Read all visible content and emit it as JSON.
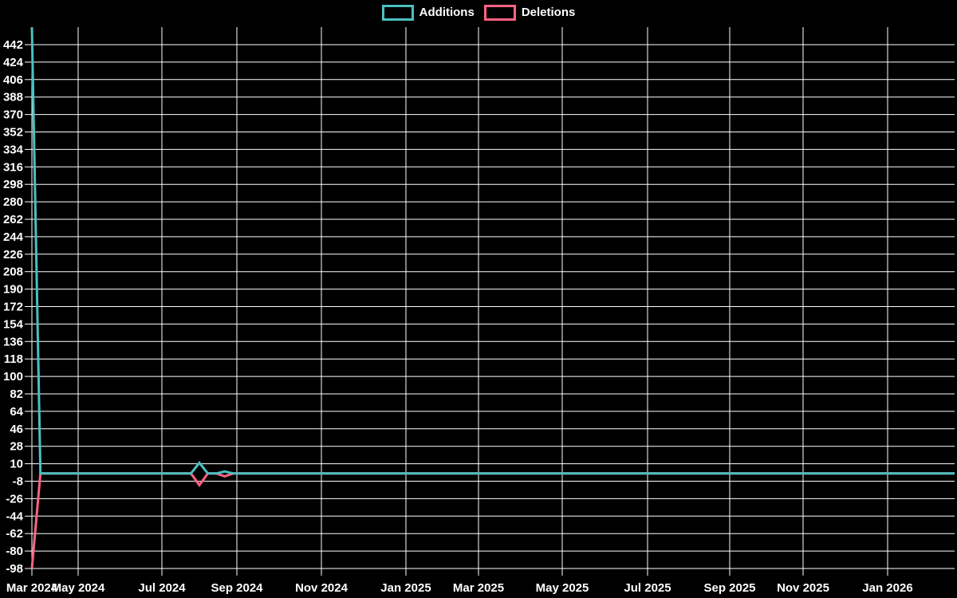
{
  "legend": {
    "items": [
      {
        "label": "Additions",
        "color": "#4bc0c0"
      },
      {
        "label": "Deletions",
        "color": "#ff6384"
      }
    ]
  },
  "chart_data": {
    "type": "line",
    "title": "",
    "xlabel": "",
    "ylabel": "",
    "background": "#000000",
    "grid": true,
    "grid_color": "#ffffff",
    "legend_position": "top",
    "yaxis": {
      "min": -98,
      "max": 442,
      "step": 18,
      "range_top": 460,
      "tick_labels": [
        "442",
        "424",
        "406",
        "388",
        "370",
        "352",
        "334",
        "316",
        "298",
        "280",
        "262",
        "244",
        "226",
        "208",
        "190",
        "172",
        "154",
        "136",
        "118",
        "100",
        "82",
        "64",
        "46",
        "28",
        "10",
        "-8",
        "-26",
        "-44",
        "-62",
        "-80",
        "-98"
      ]
    },
    "xaxis": {
      "ticks": [
        {
          "label": "Mar 2024",
          "date": "2024-03-24"
        },
        {
          "label": "May 2024",
          "date": "2024-05-01"
        },
        {
          "label": "Jul 2024",
          "date": "2024-07-01"
        },
        {
          "label": "Sep 2024",
          "date": "2024-09-01"
        },
        {
          "label": "Nov 2024",
          "date": "2024-11-01"
        },
        {
          "label": "Jan 2025",
          "date": "2025-01-01"
        },
        {
          "label": "Mar 2025",
          "date": "2025-03-01"
        },
        {
          "label": "May 2025",
          "date": "2025-05-01"
        },
        {
          "label": "Jul 2025",
          "date": "2025-07-01"
        },
        {
          "label": "Sep 2025",
          "date": "2025-09-01"
        },
        {
          "label": "Nov 2025",
          "date": "2025-11-01"
        },
        {
          "label": "Jan 2026",
          "date": "2026-01-01"
        }
      ]
    },
    "series": [
      {
        "name": "Additions",
        "color": "#4bc0c0",
        "points": [
          [
            "2024-03-24",
            460
          ],
          [
            "2024-03-31",
            0
          ],
          [
            "2024-07-25",
            0
          ],
          [
            "2024-08-01",
            11
          ],
          [
            "2024-08-08",
            0
          ],
          [
            "2024-08-15",
            0
          ],
          [
            "2024-08-22",
            2
          ],
          [
            "2024-08-29",
            0
          ],
          [
            "2026-02-15",
            0
          ]
        ]
      },
      {
        "name": "Deletions",
        "color": "#ff6384",
        "points": [
          [
            "2024-03-24",
            -98
          ],
          [
            "2024-03-31",
            0
          ],
          [
            "2024-07-25",
            0
          ],
          [
            "2024-08-01",
            -12
          ],
          [
            "2024-08-08",
            0
          ],
          [
            "2024-08-15",
            0
          ],
          [
            "2024-08-22",
            -3
          ],
          [
            "2024-08-29",
            0
          ],
          [
            "2026-02-15",
            0
          ]
        ]
      }
    ]
  }
}
